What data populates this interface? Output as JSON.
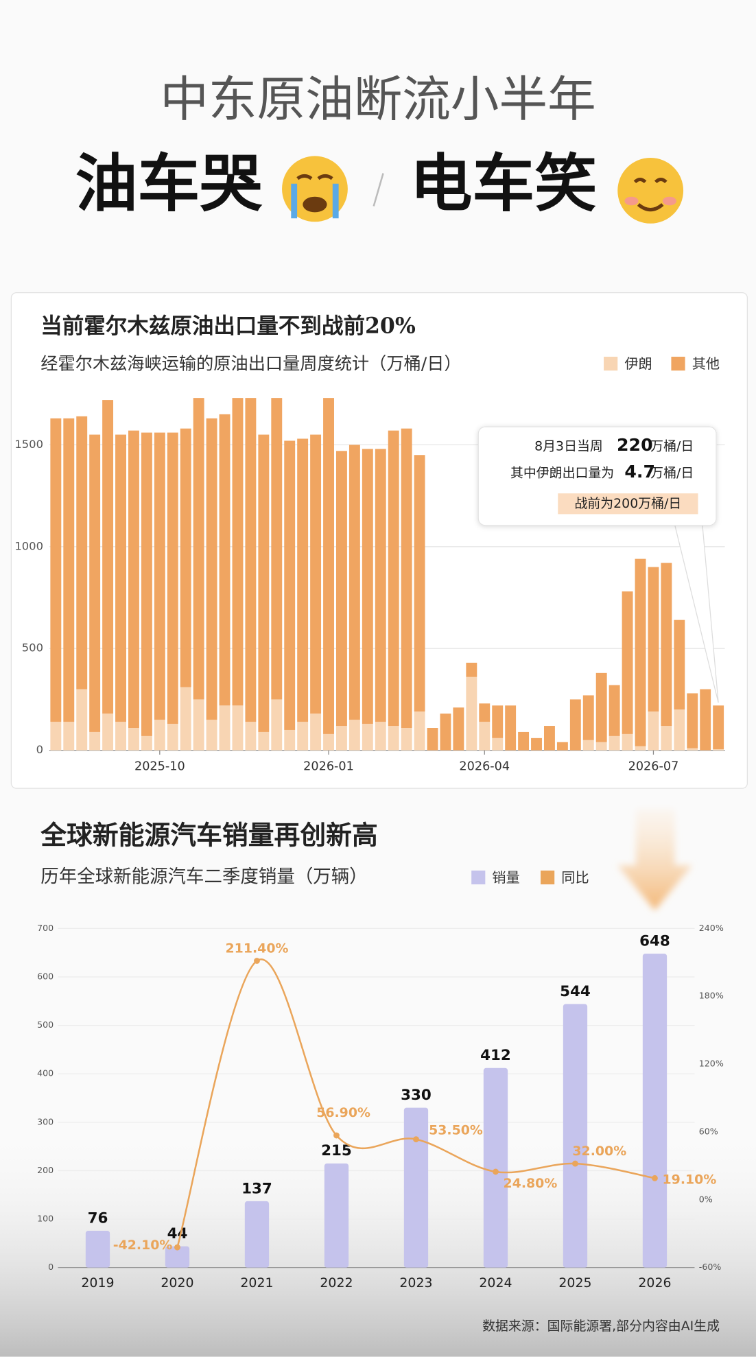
{
  "header": {
    "title": "中东原油断流小半年",
    "left": "油车哭",
    "right": "电车笑"
  },
  "chart_data": [
    {
      "type": "stacked_bar",
      "title": "当前霍尔木兹原油出口量不到战前20%",
      "subtitle": "经霍尔木兹海峡运输的原油出口量周度统计（万桶/日）",
      "categories": [
        null,
        null,
        null,
        null,
        null,
        null,
        null,
        null,
        "2025-10",
        null,
        null,
        null,
        null,
        null,
        null,
        null,
        null,
        null,
        null,
        null,
        null,
        "2026-01",
        null,
        null,
        null,
        null,
        null,
        null,
        null,
        null,
        null,
        null,
        null,
        "2026-04",
        null,
        null,
        null,
        null,
        null,
        null,
        null,
        null,
        null,
        null,
        null,
        null,
        "2026-07",
        null,
        null,
        null,
        null,
        null
      ],
      "series": [
        {
          "name": "伊朗",
          "color": "#f8d5b3",
          "values": [
            140,
            140,
            300,
            90,
            180,
            140,
            110,
            70,
            150,
            130,
            310,
            250,
            150,
            220,
            220,
            140,
            90,
            250,
            100,
            140,
            180,
            80,
            120,
            150,
            130,
            140,
            120,
            110,
            190,
            0,
            0,
            0,
            360,
            140,
            60,
            0,
            0,
            0,
            0,
            0,
            0,
            50,
            40,
            70,
            80,
            20,
            190,
            120,
            200,
            10,
            0,
            5
          ]
        },
        {
          "name": "其他",
          "color": "#f0a561",
          "values": [
            1490,
            1490,
            1340,
            1460,
            1540,
            1410,
            1460,
            1490,
            1410,
            1430,
            1270,
            1480,
            1480,
            1430,
            1510,
            1590,
            1460,
            1480,
            1420,
            1390,
            1370,
            1650,
            1350,
            1350,
            1350,
            1340,
            1450,
            1470,
            1260,
            110,
            180,
            210,
            70,
            90,
            160,
            220,
            90,
            60,
            120,
            40,
            250,
            220,
            340,
            250,
            700,
            920,
            710,
            800,
            440,
            270,
            300,
            215
          ]
        }
      ],
      "ylim": [
        0,
        1750
      ],
      "yticks": [
        0,
        500,
        1000,
        1500
      ],
      "grid": true,
      "annotations": [
        "8月3日当周",
        "220",
        "万桶/日",
        "其中伊朗出口量为",
        "4.7",
        "万桶/日",
        "战前为200万桶/日"
      ]
    },
    {
      "type": "bar_line",
      "title": "全球新能源汽车销量再创新高",
      "subtitle": "历年全球新能源汽车二季度销量（万辆）",
      "categories": [
        "2019",
        "2020",
        "2021",
        "2022",
        "2023",
        "2024",
        "2025",
        "2026"
      ],
      "series": [
        {
          "name": "销量",
          "type": "bar",
          "color": "#c5c3ec",
          "values": [
            76,
            44,
            137,
            215,
            330,
            412,
            544,
            648
          ]
        },
        {
          "name": "同比",
          "type": "line",
          "axis": "y2",
          "color": "#eaa55a",
          "values": [
            null,
            -42.1,
            211.4,
            56.9,
            53.5,
            24.8,
            32.0,
            19.1
          ],
          "value_labels": [
            null,
            "-42.10%",
            "211.40%",
            "56.90%",
            "53.50%",
            "24.80%",
            "32.00%",
            "19.10%"
          ]
        }
      ],
      "ylim": [
        0,
        700
      ],
      "yticks": [
        0,
        100,
        200,
        300,
        400,
        500,
        600,
        700
      ],
      "y2lim": [
        -60,
        240
      ],
      "y2ticks": [
        {
          "value": -60,
          "label": "-60%"
        },
        {
          "value": 0,
          "label": "0%"
        },
        {
          "value": 60,
          "label": "60%"
        },
        {
          "value": 120,
          "label": "120%"
        },
        {
          "value": 180,
          "label": "180%"
        },
        {
          "value": 240,
          "label": "240%"
        }
      ],
      "grid": true
    }
  ],
  "source": "数据来源：国际能源署,部分内容由AI生成"
}
